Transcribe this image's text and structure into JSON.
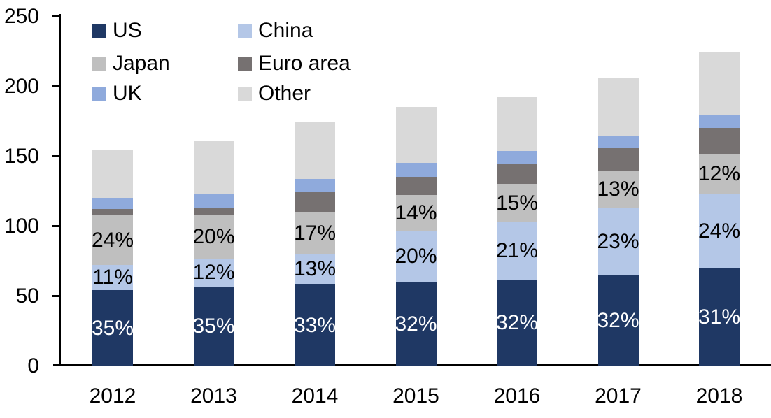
{
  "chart_data": {
    "type": "bar",
    "variant": "stacked-column",
    "title": "",
    "xlabel": "",
    "ylabel": "",
    "categories": [
      "2012",
      "2013",
      "2014",
      "2015",
      "2016",
      "2017",
      "2018"
    ],
    "series": [
      {
        "name": "US",
        "color": "#1f3864",
        "label_color": "#ffffff",
        "values": [
          54.5,
          57,
          58.5,
          60,
          62,
          65.5,
          70
        ],
        "labels": [
          "35%",
          "35%",
          "33%",
          "32%",
          "32%",
          "32%",
          "31%"
        ]
      },
      {
        "name": "China",
        "color": "#b4c7e7",
        "label_color": "#000000",
        "values": [
          18,
          20,
          22,
          37,
          41,
          47.5,
          53.5
        ],
        "labels": [
          "11%",
          "12%",
          "13%",
          "20%",
          "21%",
          "23%",
          "24%"
        ]
      },
      {
        "name": "Japan",
        "color": "#bfbfbf",
        "label_color": "#000000",
        "values": [
          35.5,
          31.5,
          29.5,
          25.5,
          27.5,
          27,
          28.5
        ],
        "labels": [
          "24%",
          "20%",
          "17%",
          "14%",
          "15%",
          "13%",
          "12%"
        ]
      },
      {
        "name": "Euro area",
        "color": "#767171",
        "label_color": "#000000",
        "values": [
          4.5,
          5,
          15,
          13,
          14.5,
          16,
          18.5
        ],
        "labels": [
          null,
          null,
          null,
          null,
          null,
          null,
          null
        ]
      },
      {
        "name": "UK",
        "color": "#8faadc",
        "label_color": "#000000",
        "values": [
          8,
          9.5,
          9,
          10,
          9,
          9,
          9.5
        ],
        "labels": [
          null,
          null,
          null,
          null,
          null,
          null,
          null
        ]
      },
      {
        "name": "Other",
        "color": "#d9d9d9",
        "label_color": "#000000",
        "values": [
          34,
          38,
          40.5,
          40,
          38.5,
          41,
          44.5
        ],
        "labels": [
          null,
          null,
          null,
          null,
          null,
          null,
          null
        ]
      }
    ],
    "totals": [
      154.5,
      161,
      174.5,
      185.5,
      192.5,
      206,
      224.5
    ],
    "ylim": [
      0,
      250
    ],
    "yticks": [
      0,
      50,
      100,
      150,
      200,
      250
    ],
    "grid": false,
    "axis_color": "#000000",
    "legend_position": "top-left, two columns, row order: US|China, Japan|Euro area, UK|Other"
  }
}
